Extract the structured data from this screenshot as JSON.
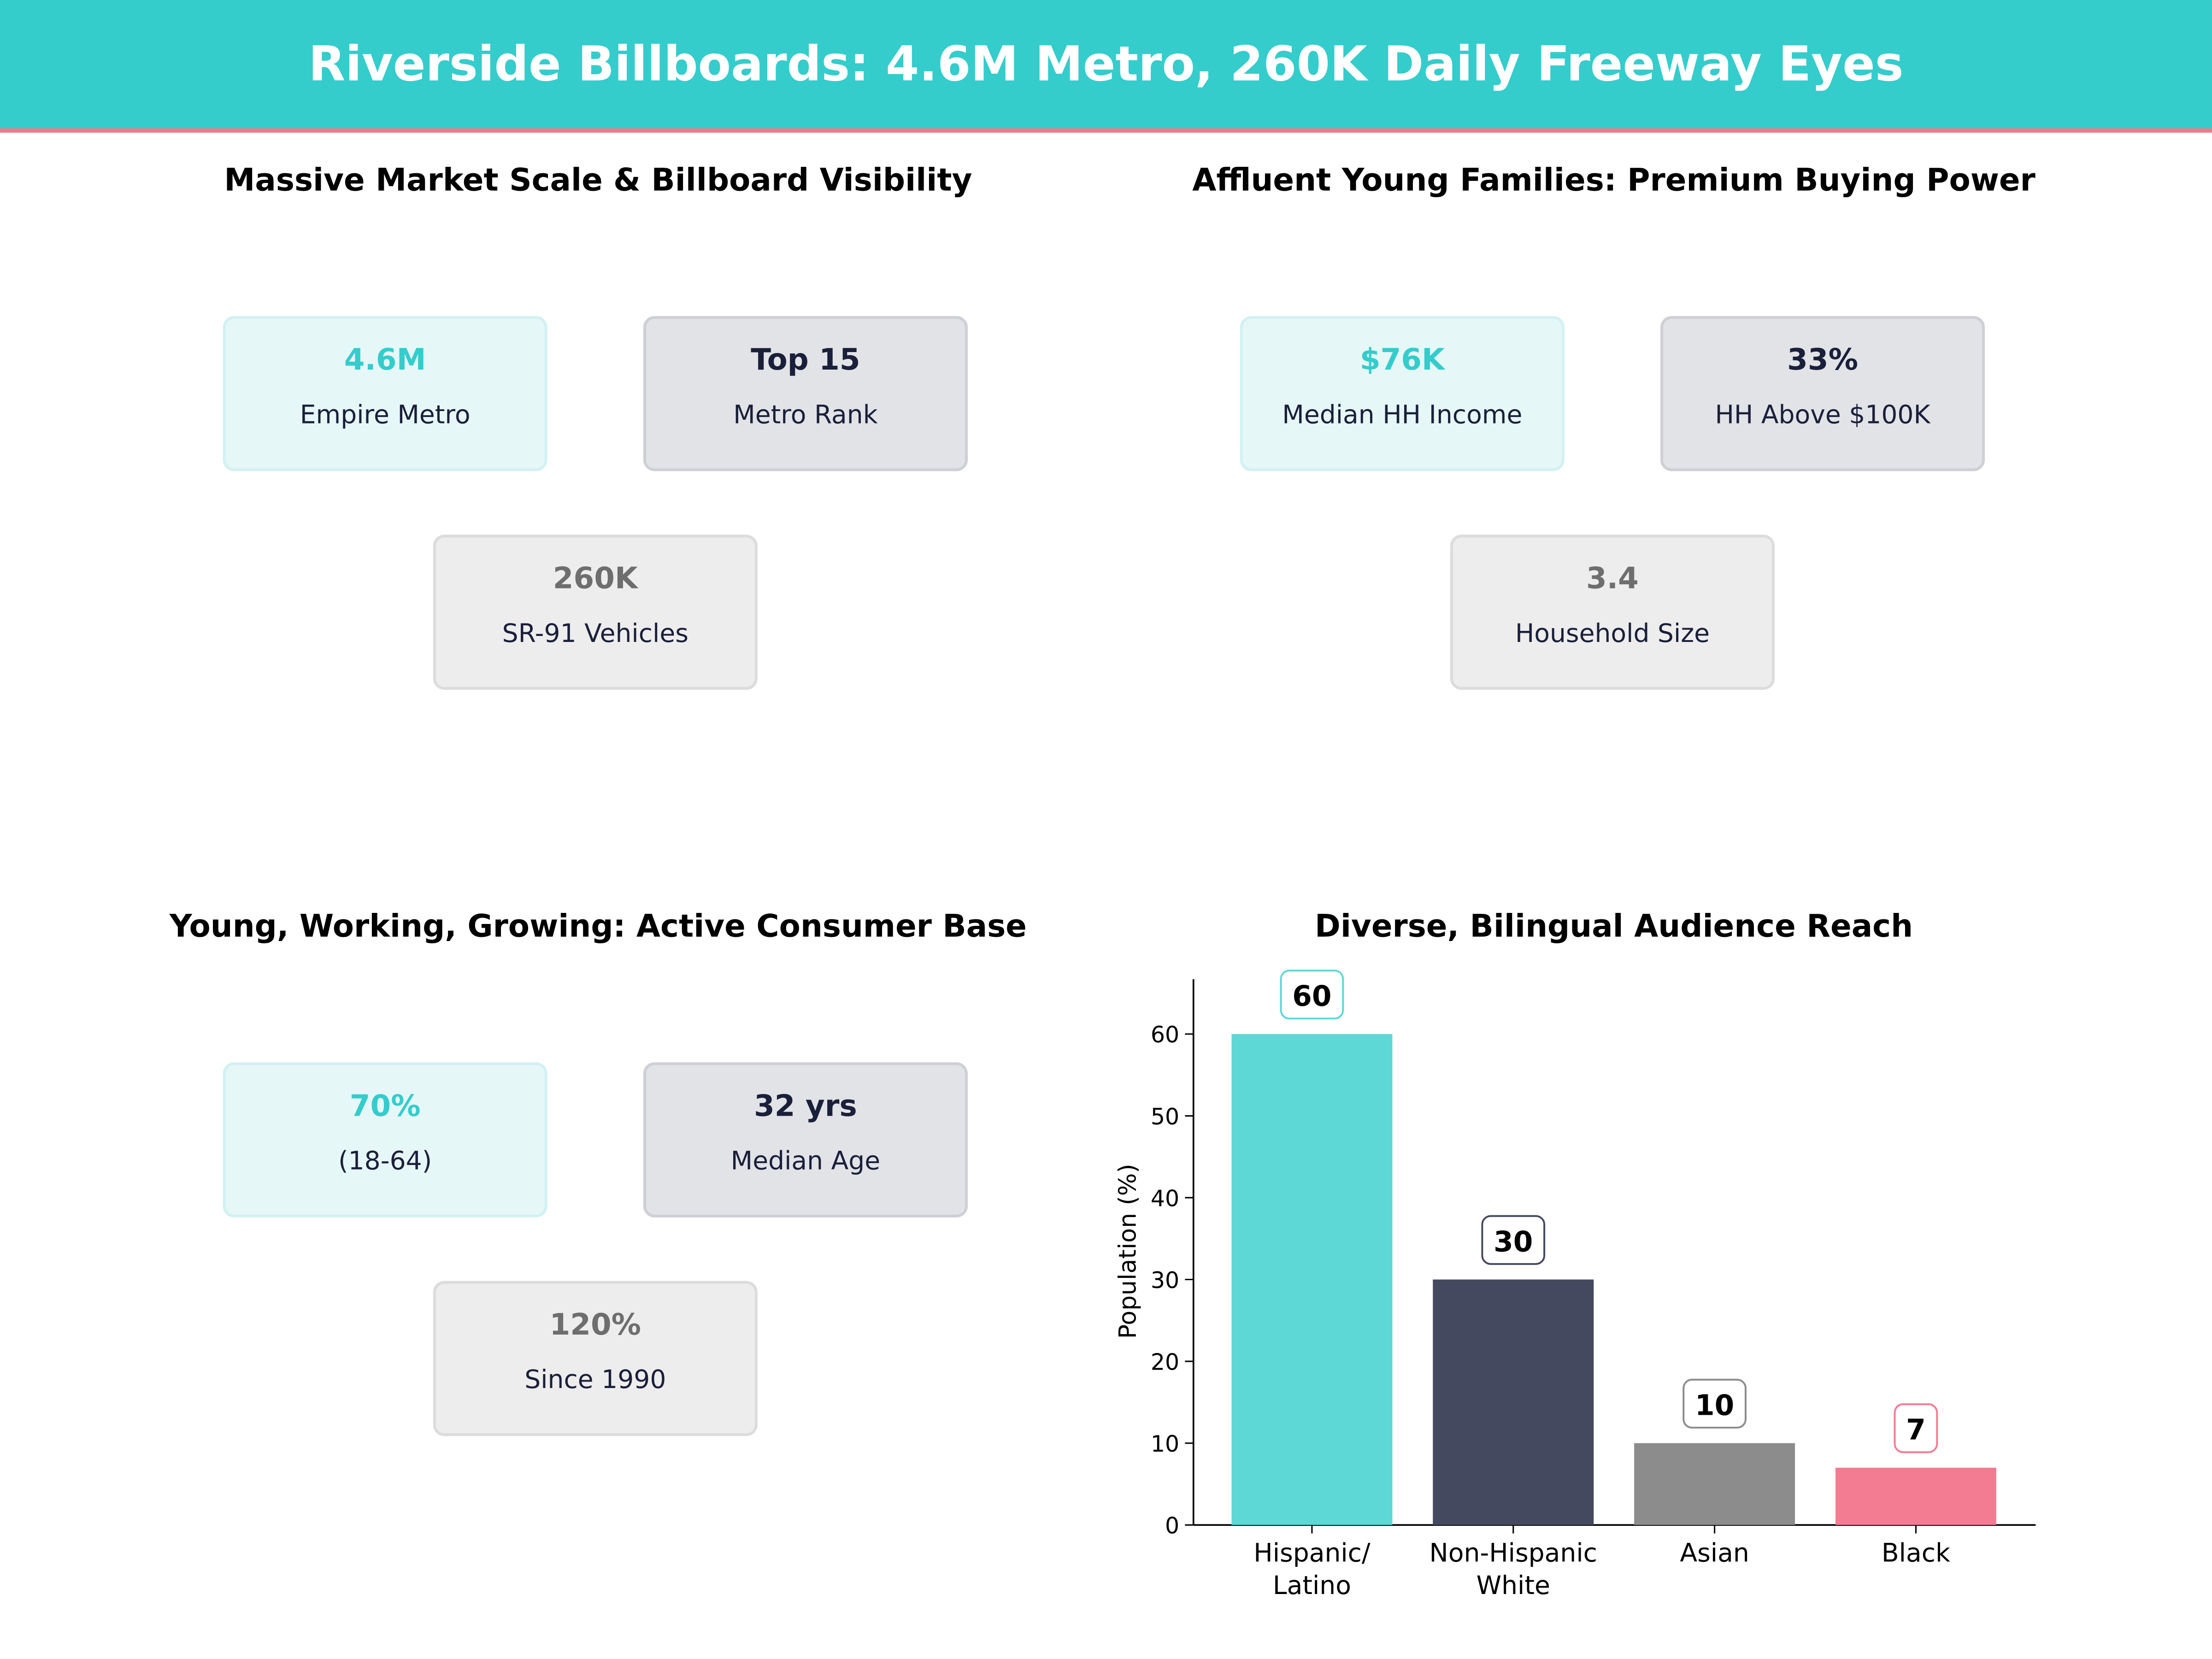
{
  "header": {
    "title": "Riverside Billboards: 4.6M Metro, 260K Daily Freeway Eyes",
    "background": "#35cccc",
    "accent_line": "#f07a8a"
  },
  "panels": [
    {
      "title": "Massive Market Scale & Billboard Visibility",
      "cards": [
        {
          "value": "4.6M",
          "label": "Empire Metro"
        },
        {
          "value": "Top 15",
          "label": "Metro Rank"
        },
        {
          "value": "260K",
          "label": "SR-91 Vehicles"
        }
      ]
    },
    {
      "title": "Affluent Young Families: Premium Buying Power",
      "cards": [
        {
          "value": "$76K",
          "label": "Median HH Income"
        },
        {
          "value": "33%",
          "label": "HH Above $100K"
        },
        {
          "value": "3.4",
          "label": "Household Size"
        }
      ]
    },
    {
      "title": "Young, Working, Growing: Active Consumer Base",
      "cards": [
        {
          "value": "70%",
          "label": "(18-64)"
        },
        {
          "value": "32 yrs",
          "label": "Median Age"
        },
        {
          "value": "120%",
          "label": "Since 1990"
        }
      ]
    }
  ],
  "chart_data": {
    "type": "bar",
    "title": "Diverse, Bilingual Audience Reach",
    "ylabel": "Population (%)",
    "xlabel": "",
    "categories": [
      "Hispanic/\nLatino",
      "Non-Hispanic\nWhite",
      "Asian",
      "Black"
    ],
    "values": [
      60,
      30,
      10,
      7
    ],
    "colors": [
      "#5dd8d6",
      "#44495f",
      "#8c8c8c",
      "#f47c92"
    ],
    "label_border_colors": [
      "#5dd8d6",
      "#44495f",
      "#8c8c8c",
      "#f47c92"
    ],
    "yticks": [
      0,
      10,
      20,
      30,
      40,
      50,
      60
    ],
    "ylim": [
      0,
      66.7
    ],
    "grid": false
  }
}
